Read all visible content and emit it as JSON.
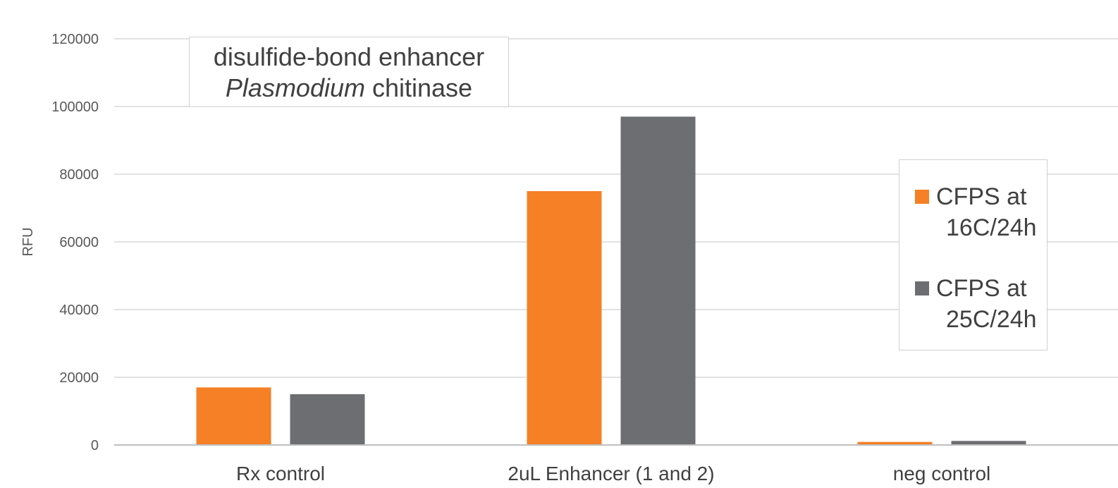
{
  "chart_data": {
    "type": "bar",
    "title_line1": "disulfide-bond enhancer",
    "title_line2_italic": "Plasmodium",
    "title_line2_rest": " chitinase",
    "ylabel": "RFU",
    "xlabel": "",
    "ylim": [
      0,
      120000
    ],
    "yticks": [
      0,
      20000,
      40000,
      60000,
      80000,
      100000,
      120000
    ],
    "grid": true,
    "legend_position": "right",
    "categories": [
      "Rx control",
      "2uL Enhancer (1 and 2)",
      "neg control"
    ],
    "series": [
      {
        "name_line1": "CFPS at",
        "name_line2": "16C/24h",
        "color": "#F58025",
        "values": [
          17000,
          75000,
          900
        ]
      },
      {
        "name_line1": "CFPS at",
        "name_line2": "25C/24h",
        "color": "#6D6E71",
        "values": [
          15000,
          97000,
          1200
        ]
      }
    ]
  }
}
